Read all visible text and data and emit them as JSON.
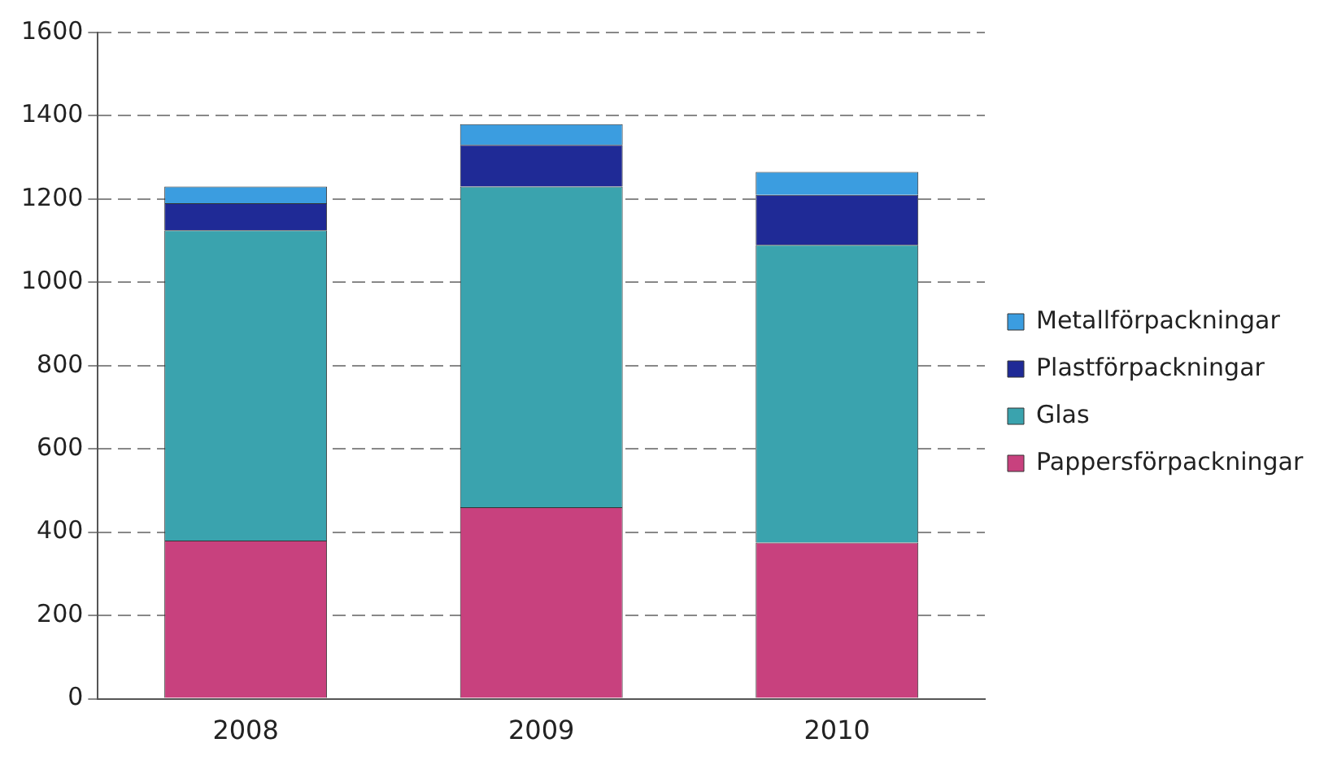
{
  "chart_data": {
    "type": "bar",
    "stacked": true,
    "categories": [
      "2008",
      "2009",
      "2010"
    ],
    "series": [
      {
        "name": "Pappersförpackningar",
        "color": "#c8417e",
        "values": [
          380,
          460,
          375
        ]
      },
      {
        "name": "Glas",
        "color": "#3aa3ae",
        "values": [
          745,
          770,
          715
        ]
      },
      {
        "name": "Plastförpackningar",
        "color": "#1f2a96",
        "values": [
          65,
          100,
          120
        ]
      },
      {
        "name": "Metallförpackningar",
        "color": "#3b9de0",
        "values": [
          40,
          50,
          55
        ]
      }
    ],
    "ylim": [
      0,
      1600
    ],
    "yticks": [
      0,
      200,
      400,
      600,
      800,
      1000,
      1200,
      1400,
      1600
    ],
    "grid": "y",
    "legend": "right"
  }
}
